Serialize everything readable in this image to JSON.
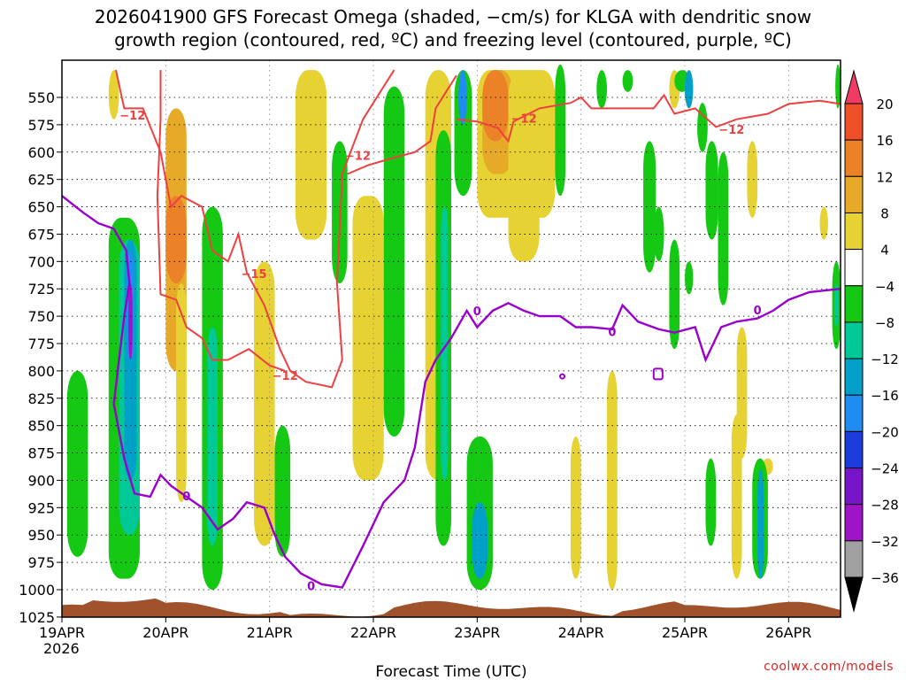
{
  "chart_data": {
    "type": "heatmap",
    "title_line1": "2026041900 GFS Forecast Omega (shaded, −cm/s) for KLGA with dendritic snow",
    "title_line2": "growth region (contoured, red, ºC) and freezing level (contoured, purple, ºC)",
    "xlabel": "Forecast Time (UTC)",
    "credit": "coolwx.com/models",
    "x_ticks": [
      "19APR",
      "20APR",
      "21APR",
      "22APR",
      "23APR",
      "24APR",
      "25APR",
      "26APR"
    ],
    "x_tick_year": "2026",
    "y_ticks": [
      550,
      575,
      600,
      625,
      650,
      675,
      700,
      725,
      750,
      775,
      800,
      825,
      850,
      875,
      900,
      925,
      950,
      975,
      1000,
      1025
    ],
    "x_range_days": [
      0,
      7.5
    ],
    "y_range_hpa": [
      525,
      1030
    ],
    "grid": true,
    "colorbar": {
      "levels": [
        "20",
        "16",
        "12",
        "8",
        "4",
        "−4",
        "−8",
        "−12",
        "−16",
        "−20",
        "−24",
        "−28",
        "−32",
        "−36"
      ],
      "colors": [
        "#f03c64",
        "#f05028",
        "#eb8228",
        "#e6aa28",
        "#e6d232",
        "#ffffff",
        "#14c814",
        "#00c896",
        "#00a0c8",
        "#1e8cf0",
        "#1e3cdc",
        "#7814c8",
        "#a014c8",
        "#a0a0a0",
        "#000000"
      ]
    },
    "dendritic_contours": [
      {
        "label": "−12",
        "points": [
          [
            0.52,
            525
          ],
          [
            0.6,
            560
          ],
          [
            0.78,
            560
          ],
          [
            0.95,
            600
          ],
          [
            1.05,
            650
          ],
          [
            1.15,
            640
          ],
          [
            1.35,
            650
          ],
          [
            1.45,
            690
          ],
          [
            1.6,
            700
          ],
          [
            1.7,
            675
          ],
          [
            1.78,
            710
          ],
          [
            1.95,
            740
          ],
          [
            2.1,
            780
          ],
          [
            2.2,
            800
          ],
          [
            2.35,
            810
          ],
          [
            2.6,
            815
          ],
          [
            2.7,
            790
          ],
          [
            2.65,
            720
          ],
          [
            2.7,
            620
          ],
          [
            2.9,
            570
          ],
          [
            3.1,
            540
          ],
          [
            3.2,
            525
          ]
        ]
      },
      {
        "label": "−12",
        "points": [
          [
            0.95,
            525
          ],
          [
            0.95,
            570
          ],
          [
            0.92,
            640
          ],
          [
            0.95,
            730
          ],
          [
            1.1,
            735
          ],
          [
            1.2,
            760
          ],
          [
            1.35,
            770
          ],
          [
            1.45,
            790
          ],
          [
            1.6,
            790
          ],
          [
            1.8,
            780
          ],
          [
            2.0,
            795
          ],
          [
            2.15,
            800
          ]
        ]
      },
      {
        "label": "−12",
        "points": [
          [
            2.75,
            620
          ],
          [
            2.95,
            612
          ],
          [
            3.2,
            605
          ],
          [
            3.4,
            600
          ],
          [
            3.55,
            590
          ],
          [
            3.6,
            560
          ],
          [
            3.7,
            545
          ],
          [
            3.8,
            530
          ]
        ]
      },
      {
        "label": "−12",
        "points": [
          [
            3.8,
            570
          ],
          [
            4.0,
            572
          ],
          [
            4.2,
            578
          ],
          [
            4.3,
            590
          ],
          [
            4.35,
            572
          ],
          [
            4.6,
            560
          ],
          [
            4.9,
            555
          ],
          [
            5.0,
            550
          ],
          [
            5.1,
            560
          ],
          [
            5.5,
            560
          ],
          [
            5.7,
            560
          ],
          [
            5.8,
            548
          ],
          [
            5.9,
            565
          ],
          [
            6.1,
            560
          ],
          [
            6.3,
            577
          ],
          [
            6.5,
            570
          ],
          [
            6.8,
            565
          ],
          [
            7.0,
            556
          ],
          [
            7.3,
            553
          ],
          [
            7.5,
            556
          ]
        ]
      }
    ],
    "freezing_level_contour": {
      "label": "0",
      "points": [
        [
          0,
          640
        ],
        [
          0.2,
          655
        ],
        [
          0.35,
          665
        ],
        [
          0.5,
          670
        ],
        [
          0.62,
          690
        ],
        [
          0.65,
          720
        ],
        [
          0.6,
          750
        ],
        [
          0.55,
          790
        ],
        [
          0.5,
          830
        ],
        [
          0.6,
          880
        ],
        [
          0.7,
          912
        ],
        [
          0.85,
          915
        ],
        [
          0.95,
          895
        ],
        [
          1.05,
          905
        ],
        [
          1.2,
          915
        ],
        [
          1.35,
          925
        ],
        [
          1.5,
          945
        ],
        [
          1.65,
          935
        ],
        [
          1.78,
          920
        ],
        [
          1.95,
          925
        ],
        [
          2.05,
          950
        ],
        [
          2.15,
          970
        ],
        [
          2.3,
          985
        ],
        [
          2.5,
          995
        ],
        [
          2.7,
          998
        ],
        [
          2.9,
          960
        ],
        [
          3.1,
          920
        ],
        [
          3.3,
          900
        ],
        [
          3.4,
          870
        ],
        [
          3.5,
          810
        ],
        [
          3.6,
          790
        ],
        [
          3.75,
          770
        ],
        [
          3.9,
          745
        ],
        [
          4.0,
          760
        ],
        [
          4.15,
          745
        ],
        [
          4.3,
          738
        ],
        [
          4.45,
          745
        ],
        [
          4.6,
          750
        ],
        [
          4.8,
          750
        ],
        [
          4.95,
          760
        ],
        [
          5.1,
          760
        ],
        [
          5.3,
          762
        ],
        [
          5.4,
          740
        ],
        [
          5.55,
          755
        ],
        [
          5.75,
          762
        ],
        [
          5.9,
          765
        ],
        [
          6.1,
          760
        ],
        [
          6.2,
          790
        ],
        [
          6.35,
          760
        ],
        [
          6.5,
          755
        ],
        [
          6.7,
          752
        ],
        [
          6.85,
          745
        ],
        [
          7.0,
          735
        ],
        [
          7.2,
          728
        ],
        [
          7.5,
          725
        ]
      ]
    },
    "freezing_level_labels": [
      "0",
      "0",
      "0",
      "0",
      "0"
    ],
    "dendritic_labels": [
      "−12",
      "−12",
      "−12",
      "−12",
      "−15",
      "−12"
    ],
    "omega_regions": [
      {
        "level": "4",
        "x": [
          0.45,
          0.55
        ],
        "p": [
          525,
          570
        ]
      },
      {
        "level": "8",
        "x": [
          1.0,
          1.2
        ],
        "p": [
          560,
          800
        ]
      },
      {
        "level": "12",
        "x": [
          1.0,
          1.2
        ],
        "p": [
          640,
          720
        ]
      },
      {
        "level": "4",
        "x": [
          1.1,
          1.2
        ],
        "p": [
          720,
          920
        ]
      },
      {
        "level": "4",
        "x": [
          1.85,
          2.05
        ],
        "p": [
          700,
          960
        ]
      },
      {
        "level": "4",
        "x": [
          2.25,
          2.55
        ],
        "p": [
          525,
          680
        ]
      },
      {
        "level": "4",
        "x": [
          2.8,
          3.1
        ],
        "p": [
          640,
          900
        ]
      },
      {
        "level": "4",
        "x": [
          3.5,
          3.75
        ],
        "p": [
          525,
          900
        ]
      },
      {
        "level": "4",
        "x": [
          4.0,
          4.75
        ],
        "p": [
          525,
          660
        ]
      },
      {
        "level": "8",
        "x": [
          4.05,
          4.35
        ],
        "p": [
          525,
          620
        ]
      },
      {
        "level": "12",
        "x": [
          4.05,
          4.3
        ],
        "p": [
          525,
          590
        ]
      },
      {
        "level": "4",
        "x": [
          4.3,
          4.6
        ],
        "p": [
          525,
          700
        ]
      },
      {
        "level": "4",
        "x": [
          4.9,
          5.0
        ],
        "p": [
          860,
          990
        ]
      },
      {
        "level": "4",
        "x": [
          5.25,
          5.35
        ],
        "p": [
          800,
          1000
        ]
      },
      {
        "level": "4",
        "x": [
          5.85,
          5.95
        ],
        "p": [
          525,
          560
        ]
      },
      {
        "level": "4",
        "x": [
          6.0,
          6.08
        ],
        "p": [
          525,
          560
        ]
      },
      {
        "level": "4",
        "x": [
          6.5,
          6.6
        ],
        "p": [
          760,
          880
        ]
      },
      {
        "level": "4",
        "x": [
          6.6,
          6.7
        ],
        "p": [
          590,
          660
        ]
      },
      {
        "level": "4",
        "x": [
          6.45,
          6.55
        ],
        "p": [
          840,
          990
        ]
      },
      {
        "level": "4",
        "x": [
          7.3,
          7.38
        ],
        "p": [
          650,
          680
        ]
      },
      {
        "level": "4",
        "x": [
          6.75,
          6.85
        ],
        "p": [
          880,
          895
        ]
      },
      {
        "level": "-4",
        "x": [
          0.05,
          0.25
        ],
        "p": [
          800,
          970
        ]
      },
      {
        "level": "-4",
        "x": [
          0.45,
          0.75
        ],
        "p": [
          660,
          990
        ]
      },
      {
        "level": "-8",
        "x": [
          0.55,
          0.75
        ],
        "p": [
          680,
          950
        ]
      },
      {
        "level": "-12",
        "x": [
          0.6,
          0.72
        ],
        "p": [
          680,
          900
        ]
      },
      {
        "level": "-16",
        "x": [
          0.62,
          0.7
        ],
        "p": [
          690,
          790
        ]
      },
      {
        "level": "-28",
        "x": [
          0.64,
          0.68
        ],
        "p": [
          720,
          790
        ]
      },
      {
        "level": "-4",
        "x": [
          1.35,
          1.55
        ],
        "p": [
          650,
          1000
        ]
      },
      {
        "level": "-8",
        "x": [
          1.4,
          1.5
        ],
        "p": [
          760,
          960
        ]
      },
      {
        "level": "-4",
        "x": [
          2.05,
          2.2
        ],
        "p": [
          850,
          970
        ]
      },
      {
        "level": "-4",
        "x": [
          2.6,
          2.75
        ],
        "p": [
          590,
          720
        ]
      },
      {
        "level": "-4",
        "x": [
          3.1,
          3.3
        ],
        "p": [
          540,
          860
        ]
      },
      {
        "level": "-4",
        "x": [
          3.6,
          3.75
        ],
        "p": [
          580,
          960
        ]
      },
      {
        "level": "-8",
        "x": [
          3.65,
          3.72
        ],
        "p": [
          650,
          900
        ]
      },
      {
        "level": "-4",
        "x": [
          3.78,
          3.95
        ],
        "p": [
          525,
          640
        ]
      },
      {
        "level": "-16",
        "x": [
          3.82,
          3.9
        ],
        "p": [
          525,
          575
        ]
      },
      {
        "level": "-4",
        "x": [
          3.9,
          4.15
        ],
        "p": [
          860,
          1000
        ]
      },
      {
        "level": "-12",
        "x": [
          3.95,
          4.1
        ],
        "p": [
          920,
          990
        ]
      },
      {
        "level": "-4",
        "x": [
          4.75,
          4.85
        ],
        "p": [
          520,
          640
        ]
      },
      {
        "level": "-4",
        "x": [
          5.15,
          5.25
        ],
        "p": [
          525,
          560
        ]
      },
      {
        "level": "-4",
        "x": [
          5.4,
          5.5
        ],
        "p": [
          525,
          545
        ]
      },
      {
        "level": "-4",
        "x": [
          5.6,
          5.72
        ],
        "p": [
          590,
          710
        ]
      },
      {
        "level": "-4",
        "x": [
          5.7,
          5.8
        ],
        "p": [
          650,
          700
        ]
      },
      {
        "level": "-4",
        "x": [
          5.85,
          5.95
        ],
        "p": [
          680,
          780
        ]
      },
      {
        "level": "-4",
        "x": [
          6.0,
          6.08
        ],
        "p": [
          700,
          730
        ]
      },
      {
        "level": "-4",
        "x": [
          5.9,
          6.05
        ],
        "p": [
          525,
          545
        ]
      },
      {
        "level": "-12",
        "x": [
          6.0,
          6.08
        ],
        "p": [
          525,
          560
        ]
      },
      {
        "level": "-4",
        "x": [
          6.12,
          6.22
        ],
        "p": [
          555,
          600
        ]
      },
      {
        "level": "-4",
        "x": [
          6.2,
          6.32
        ],
        "p": [
          590,
          680
        ]
      },
      {
        "level": "-4",
        "x": [
          6.32,
          6.42
        ],
        "p": [
          600,
          740
        ]
      },
      {
        "level": "-4",
        "x": [
          6.2,
          6.3
        ],
        "p": [
          880,
          960
        ]
      },
      {
        "level": "-4",
        "x": [
          6.65,
          6.8
        ],
        "p": [
          880,
          990
        ]
      },
      {
        "level": "-12",
        "x": [
          6.7,
          6.76
        ],
        "p": [
          890,
          990
        ]
      },
      {
        "level": "-4",
        "x": [
          7.45,
          7.5
        ],
        "p": [
          520,
          560
        ]
      },
      {
        "level": "-4",
        "x": [
          7.42,
          7.5
        ],
        "p": [
          700,
          780
        ]
      },
      {
        "level": "-8",
        "x": [
          7.44,
          7.48
        ],
        "p": [
          720,
          760
        ]
      }
    ]
  }
}
